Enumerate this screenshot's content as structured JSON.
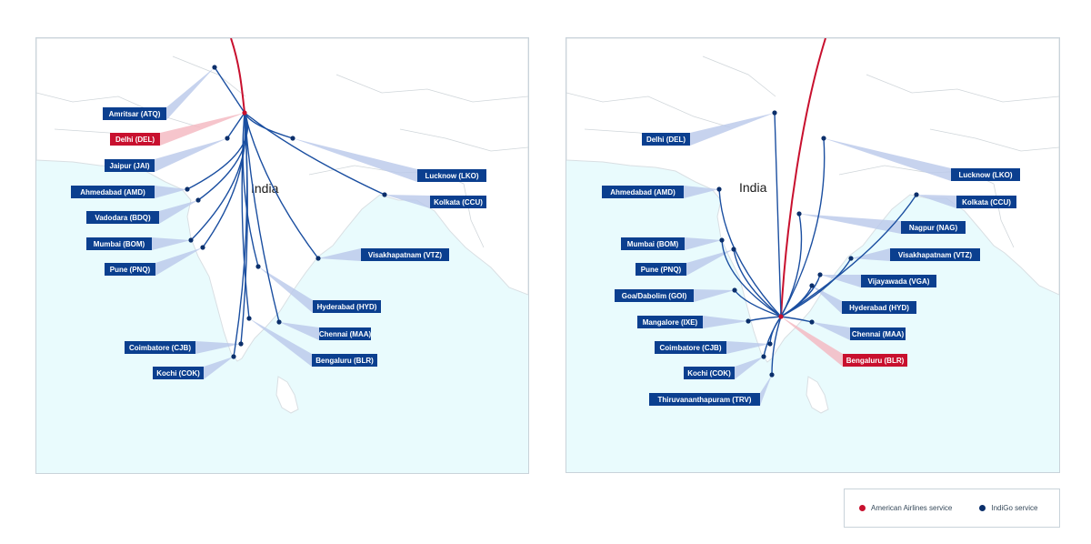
{
  "colors": {
    "american": "#c8102e",
    "indigo": "#1a4ea0",
    "label_bg": "#0b3f8f",
    "sea": "#e9fbfd",
    "land": "#ffffff",
    "border": "#c9d3da",
    "pointer_blue": "#b9c8ea",
    "pointer_red": "#f4b6bf"
  },
  "maps": [
    {
      "country_label": "India",
      "hub": "Delhi (DEL)",
      "destinations": [
        {
          "label": "Amritsar (ATQ)",
          "service": "indigo"
        },
        {
          "label": "Delhi (DEL)",
          "service": "american"
        },
        {
          "label": "Jaipur (JAI)",
          "service": "indigo"
        },
        {
          "label": "Ahmedabad (AMD)",
          "service": "indigo"
        },
        {
          "label": "Vadodara (BDQ)",
          "service": "indigo"
        },
        {
          "label": "Mumbai (BOM)",
          "service": "indigo"
        },
        {
          "label": "Pune (PNQ)",
          "service": "indigo"
        },
        {
          "label": "Lucknow (LKO)",
          "service": "indigo"
        },
        {
          "label": "Kolkata (CCU)",
          "service": "indigo"
        },
        {
          "label": "Visakhapatnam (VTZ)",
          "service": "indigo"
        },
        {
          "label": "Hyderabad (HYD)",
          "service": "indigo"
        },
        {
          "label": "Chennai (MAA)",
          "service": "indigo"
        },
        {
          "label": "Bengaluru (BLR)",
          "service": "indigo"
        },
        {
          "label": "Coimbatore (CJB)",
          "service": "indigo"
        },
        {
          "label": "Kochi (COK)",
          "service": "indigo"
        }
      ]
    },
    {
      "country_label": "India",
      "hub": "Bengaluru (BLR)",
      "destinations": [
        {
          "label": "Delhi (DEL)",
          "service": "indigo"
        },
        {
          "label": "Ahmedabad (AMD)",
          "service": "indigo"
        },
        {
          "label": "Mumbai (BOM)",
          "service": "indigo"
        },
        {
          "label": "Pune (PNQ)",
          "service": "indigo"
        },
        {
          "label": "Goa/Dabolim (GOI)",
          "service": "indigo"
        },
        {
          "label": "Mangalore (IXE)",
          "service": "indigo"
        },
        {
          "label": "Coimbatore (CJB)",
          "service": "indigo"
        },
        {
          "label": "Kochi (COK)",
          "service": "indigo"
        },
        {
          "label": "Thiruvananthapuram (TRV)",
          "service": "indigo"
        },
        {
          "label": "Lucknow (LKO)",
          "service": "indigo"
        },
        {
          "label": "Kolkata (CCU)",
          "service": "indigo"
        },
        {
          "label": "Nagpur (NAG)",
          "service": "indigo"
        },
        {
          "label": "Visakhapatnam (VTZ)",
          "service": "indigo"
        },
        {
          "label": "Vijayawada (VGA)",
          "service": "indigo"
        },
        {
          "label": "Hyderabad (HYD)",
          "service": "indigo"
        },
        {
          "label": "Chennai (MAA)",
          "service": "indigo"
        },
        {
          "label": "Bengaluru (BLR)",
          "service": "american"
        }
      ]
    }
  ],
  "legend": {
    "american_label": "American Airlines service",
    "indigo_label": "IndiGo service"
  }
}
